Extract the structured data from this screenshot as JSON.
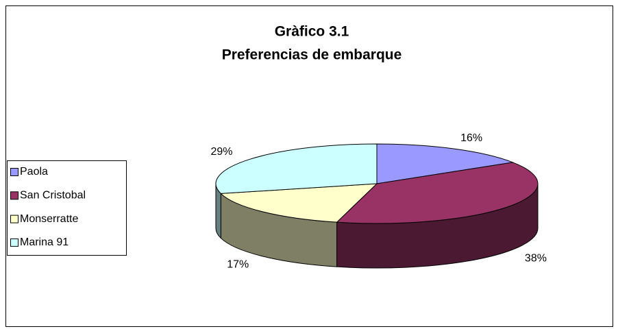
{
  "chart_data": {
    "type": "pie3d",
    "title": "Gràfico 3.1",
    "subtitle": "Preferencias de embarque",
    "categories": [
      "Paola",
      "San Cristobal",
      "Monserratte",
      "Marina 91"
    ],
    "values": [
      16,
      38,
      17,
      29
    ],
    "value_labels": [
      "16%",
      "38%",
      "17%",
      "29%"
    ],
    "colors": [
      "#9999ff",
      "#993366",
      "#ffffcc",
      "#ccffff"
    ],
    "legend": "left"
  }
}
